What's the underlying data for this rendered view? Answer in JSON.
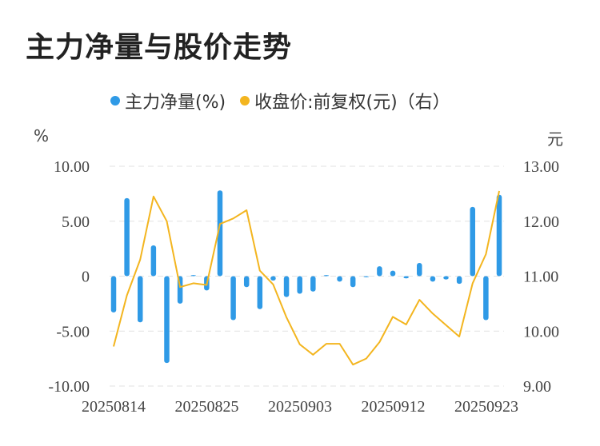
{
  "title": "主力净量与股价走势",
  "legend": {
    "series1": "主力净量(%)",
    "series2": "收盘价:前复权(元)（右）"
  },
  "units": {
    "left": "%",
    "right": "元"
  },
  "colors": {
    "bar": "#2f9ae6",
    "line": "#f3b51f",
    "grid": "#e2e2e2"
  },
  "chart_data": {
    "type": "bar+line",
    "x_tick_labels": [
      "20250814",
      "20250825",
      "20250903",
      "20250912",
      "20250923"
    ],
    "y_left": {
      "ylim": [
        -10,
        10
      ],
      "tick_labels": [
        "10.00",
        "5.00",
        "0",
        "-5.00",
        "-10.00"
      ],
      "tick_values": [
        10,
        5,
        0,
        -5,
        -10
      ]
    },
    "y_right": {
      "ylim": [
        9,
        13
      ],
      "tick_labels": [
        "13.00",
        "12.00",
        "11.00",
        "10.00",
        "9.00"
      ],
      "tick_values": [
        13,
        12,
        11,
        10,
        9
      ]
    },
    "grid": true,
    "series": [
      {
        "name": "主力净量(%)",
        "type": "bar",
        "axis": "left",
        "values": [
          -3.3,
          7.1,
          -4.2,
          2.8,
          -7.9,
          -2.5,
          0.1,
          -1.3,
          7.8,
          -4.0,
          -1.0,
          -3.0,
          -0.4,
          -1.9,
          -1.6,
          -1.4,
          0.1,
          -0.5,
          -1.0,
          -0.1,
          0.9,
          0.5,
          -0.2,
          1.2,
          -0.5,
          -0.3,
          -0.7,
          6.3,
          -4.0,
          7.4
        ]
      },
      {
        "name": "收盘价:前复权(元)（右）",
        "type": "line",
        "axis": "right",
        "values": [
          9.72,
          10.65,
          11.3,
          12.45,
          12.0,
          10.8,
          10.87,
          10.84,
          11.95,
          12.05,
          12.2,
          11.1,
          10.85,
          10.25,
          9.76,
          9.57,
          9.77,
          9.77,
          9.39,
          9.5,
          9.8,
          10.26,
          10.12,
          10.57,
          10.32,
          10.11,
          9.9,
          10.87,
          11.4,
          12.55
        ]
      }
    ]
  }
}
